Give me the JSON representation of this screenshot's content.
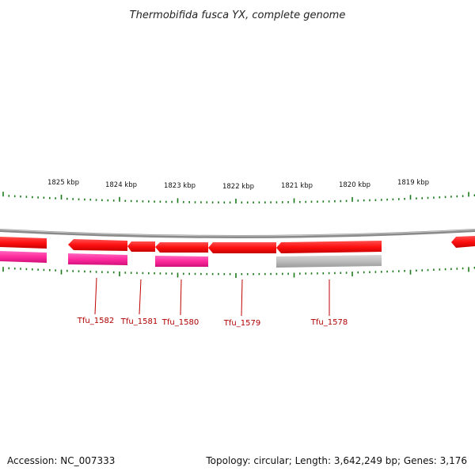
{
  "title": "Thermobifida fusca YX, complete genome",
  "ruler": {
    "labels": [
      "1825 kbp",
      "1824 kbp",
      "1823 kbp",
      "1822 kbp",
      "1821 kbp",
      "1820 kbp",
      "1819 kbp"
    ]
  },
  "genes": [
    {
      "label": "Tfu_1582"
    },
    {
      "label": "Tfu_1581"
    },
    {
      "label": "Tfu_1580"
    },
    {
      "label": "Tfu_1579"
    },
    {
      "label": "Tfu_1578"
    }
  ],
  "colors": {
    "gene_red": "#ff1a1a",
    "gene_red_dark": "#c00000",
    "gene_magenta": "#ff2a9e",
    "gene_grey": "#bdbdbd",
    "backbone": "#8a8a8a",
    "tick": "#1a7a1a",
    "label_red": "#b00000"
  },
  "footer": {
    "accession": "Accession: NC_007333",
    "summary": "Topology: circular; Length: 3,642,249 bp; Genes: 3,176"
  }
}
